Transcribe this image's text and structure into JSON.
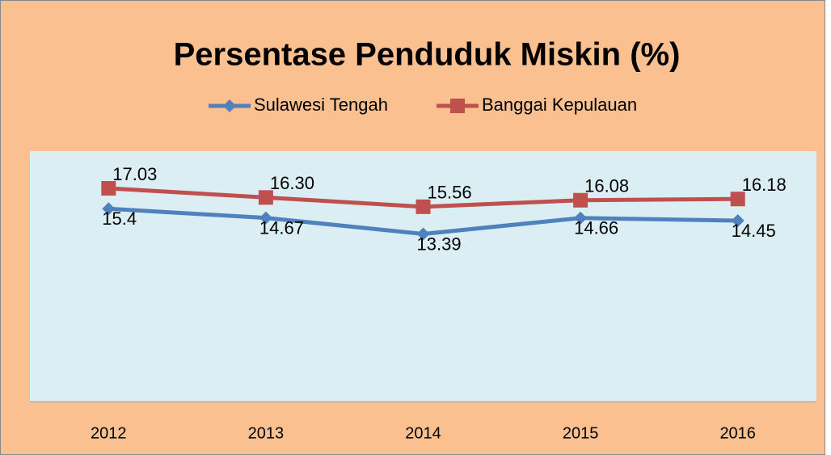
{
  "chart_data": {
    "type": "line",
    "title": "Persentase Penduduk Miskin (%)",
    "categories": [
      "2012",
      "2013",
      "2014",
      "2015",
      "2016"
    ],
    "series": [
      {
        "name": "Sulawesi Tengah",
        "color": "#4f81bd",
        "marker": "diamond",
        "values": [
          15.4,
          14.67,
          13.39,
          14.66,
          14.45
        ]
      },
      {
        "name": "Banggai Kepulauan",
        "color": "#c0504d",
        "marker": "square",
        "values": [
          17.03,
          16.3,
          15.56,
          16.08,
          16.18
        ],
        "value_labels": [
          "17.03",
          "16.30",
          "15.56",
          "16.08",
          "16.18"
        ]
      }
    ],
    "ylim": [
      0,
      20
    ],
    "legend": "top"
  }
}
